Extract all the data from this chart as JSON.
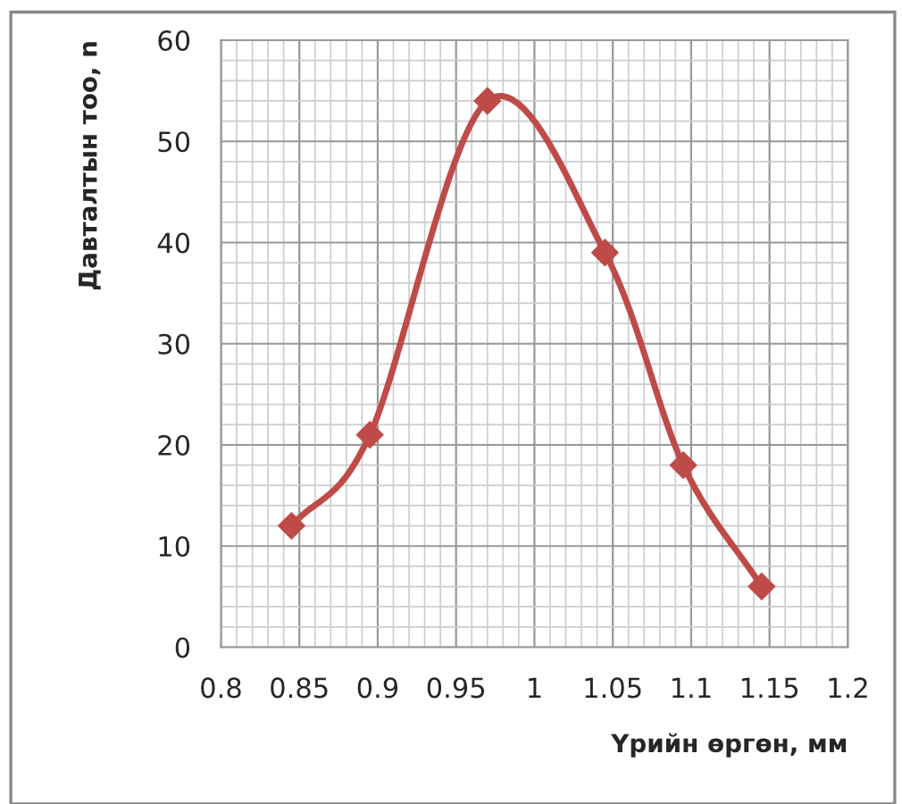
{
  "chart_data": {
    "type": "line",
    "xlabel": "Үрийн өргөн, мм",
    "ylabel": "Давталтын тоо, n",
    "x": [
      0.845,
      0.895,
      0.97,
      1.045,
      1.095,
      1.145
    ],
    "series": [
      {
        "color": "#be4b48",
        "values": [
          12,
          21,
          54,
          39,
          18,
          6
        ]
      }
    ],
    "xlim": [
      0.8,
      1.2
    ],
    "xticks": [
      0.8,
      0.85,
      0.9,
      0.95,
      {
        "value": 1,
        "label": "1"
      },
      1.05,
      1.1,
      1.15,
      1.2
    ],
    "ylim": [
      0,
      60
    ],
    "yticks": [
      0,
      10,
      20,
      30,
      40,
      50,
      60
    ],
    "grid": true,
    "marker": "diamond",
    "line_style": "solid",
    "legend": false
  }
}
